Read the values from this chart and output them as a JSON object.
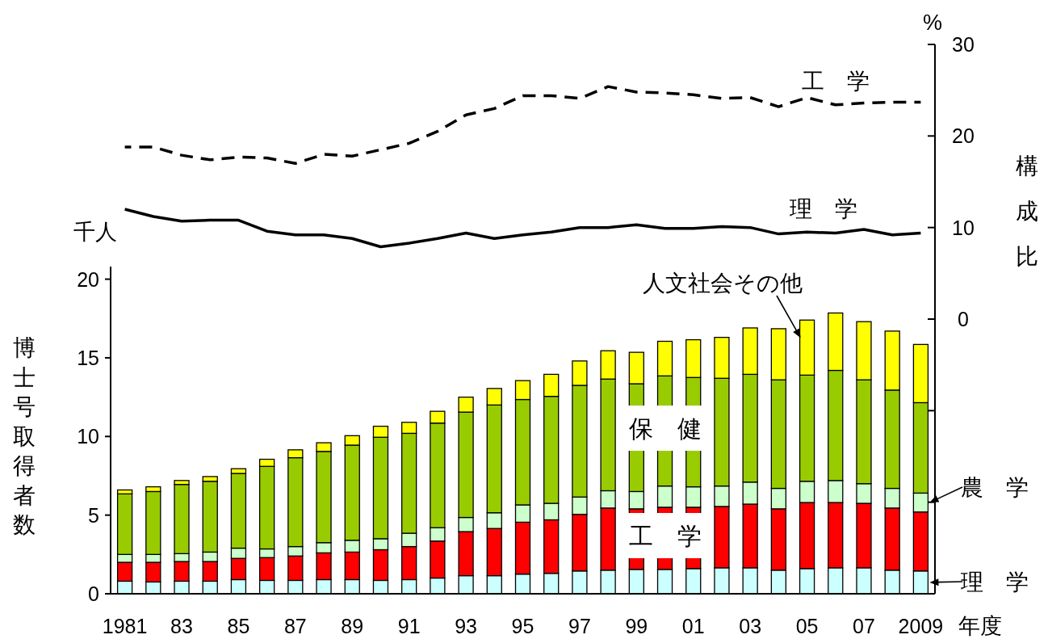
{
  "chart_data": [
    {
      "type": "line",
      "ylabel": "構成比",
      "annotations": [
        "%"
      ],
      "marker": "none",
      "categories": [
        null,
        null,
        null,
        null,
        null,
        null,
        null,
        null,
        null,
        null,
        null,
        null,
        null,
        null,
        null,
        null,
        null,
        null,
        null,
        null,
        null,
        null,
        null,
        null,
        null,
        null,
        null,
        null,
        null
      ],
      "ylim": [
        -30,
        30
      ],
      "yticks": [
        {
          "value": -30,
          "label": null
        },
        {
          "value": -20,
          "label": null
        },
        {
          "value": -10,
          "label": null
        },
        0,
        10,
        20,
        30
      ],
      "series": [
        {
          "name": "工　学",
          "color": "#000000",
          "line_style": "dashed",
          "values": [
            18.8,
            18.8,
            17.9,
            17.4,
            17.7,
            17.6,
            17.0,
            18.0,
            17.8,
            18.5,
            19.2,
            20.5,
            22.3,
            23.0,
            24.4,
            24.4,
            24.1,
            25.4,
            24.8,
            24.7,
            24.5,
            24.1,
            24.2,
            23.2,
            24.2,
            23.4,
            23.6,
            23.7,
            23.7
          ]
        },
        {
          "name": "理　学",
          "color": "#000000",
          "line_style": "solid",
          "values": [
            12.0,
            11.2,
            10.7,
            10.8,
            10.8,
            9.6,
            9.2,
            9.2,
            8.8,
            7.9,
            8.3,
            8.8,
            9.4,
            8.8,
            9.2,
            9.5,
            10.0,
            10.0,
            10.3,
            9.9,
            9.9,
            10.1,
            10.0,
            9.3,
            9.5,
            9.4,
            9.8,
            9.2,
            9.4
          ]
        }
      ]
    },
    {
      "type": "bar",
      "stacked": true,
      "xlabel": "年度",
      "ylabel": "博士号取得者数",
      "annotations": [
        "千人"
      ],
      "categories": [
        "1981",
        null,
        "83",
        null,
        "85",
        null,
        "87",
        null,
        "89",
        null,
        "91",
        null,
        "93",
        null,
        "95",
        null,
        "97",
        null,
        "99",
        null,
        "01",
        null,
        "03",
        null,
        "05",
        null,
        "07",
        null,
        "2009"
      ],
      "ylim": [
        0,
        20.8
      ],
      "yticks": [
        0,
        5,
        10,
        15,
        20
      ],
      "grid": false,
      "series": [
        {
          "name": "理　学",
          "color": "#ccffff",
          "values": [
            0.8,
            0.75,
            0.8,
            0.8,
            0.9,
            0.85,
            0.85,
            0.9,
            0.9,
            0.85,
            0.9,
            1.0,
            1.15,
            1.15,
            1.25,
            1.3,
            1.45,
            1.5,
            1.55,
            1.55,
            1.6,
            1.65,
            1.65,
            1.5,
            1.6,
            1.65,
            1.65,
            1.5,
            1.45
          ]
        },
        {
          "name": "工　学",
          "color": "#ff0000",
          "values": [
            1.2,
            1.25,
            1.25,
            1.25,
            1.35,
            1.45,
            1.55,
            1.7,
            1.75,
            1.95,
            2.1,
            2.35,
            2.8,
            3.0,
            3.3,
            3.4,
            3.6,
            3.95,
            3.85,
            3.95,
            3.9,
            3.9,
            4.05,
            3.9,
            4.2,
            4.15,
            4.1,
            3.95,
            3.75
          ]
        },
        {
          "name": "農　学",
          "color": "#ccffcc",
          "values": [
            0.5,
            0.5,
            0.5,
            0.6,
            0.65,
            0.55,
            0.6,
            0.65,
            0.75,
            0.7,
            0.85,
            0.85,
            0.9,
            1.0,
            1.1,
            1.05,
            1.1,
            1.1,
            1.1,
            1.35,
            1.3,
            1.3,
            1.4,
            1.3,
            1.35,
            1.4,
            1.25,
            1.25,
            1.2
          ]
        },
        {
          "name": "保　健",
          "color": "#99cc00",
          "values": [
            3.85,
            4.0,
            4.4,
            4.5,
            4.75,
            5.25,
            5.65,
            5.8,
            6.05,
            6.45,
            6.35,
            6.65,
            6.7,
            6.85,
            6.7,
            6.8,
            7.1,
            7.1,
            6.85,
            7.0,
            6.95,
            6.85,
            6.85,
            6.9,
            6.75,
            7.0,
            6.6,
            6.25,
            5.75
          ]
        },
        {
          "name": "人文社会その他",
          "color": "#ffff00",
          "values": [
            0.25,
            0.3,
            0.25,
            0.3,
            0.3,
            0.45,
            0.5,
            0.55,
            0.6,
            0.7,
            0.7,
            0.75,
            0.95,
            1.05,
            1.2,
            1.4,
            1.55,
            1.8,
            2.0,
            2.2,
            2.4,
            2.6,
            2.95,
            3.25,
            3.5,
            3.65,
            3.7,
            3.75,
            3.7
          ]
        }
      ]
    }
  ]
}
